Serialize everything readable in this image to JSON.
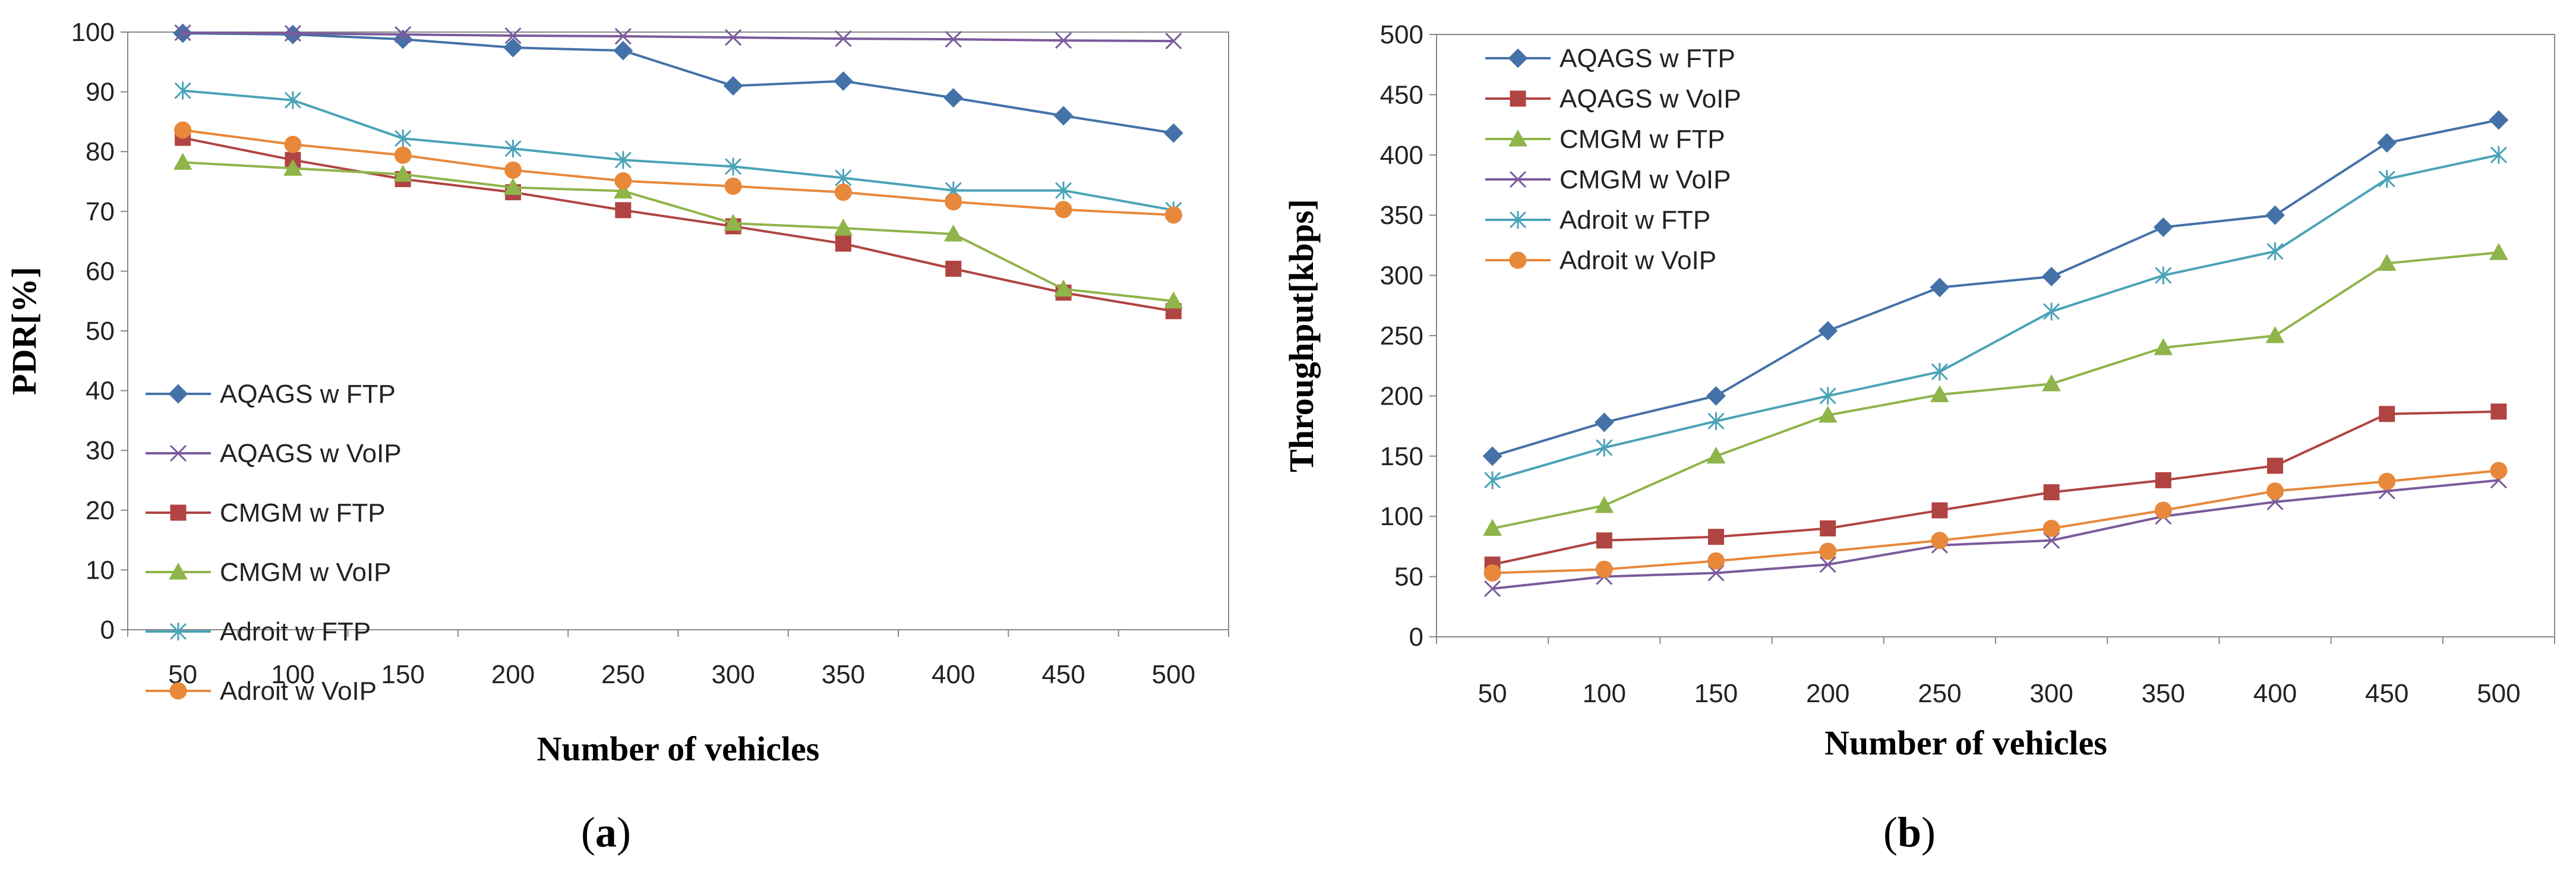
{
  "chart_data": [
    {
      "type": "line",
      "panel_label": "a",
      "title": "",
      "xlabel": "Number of  vehicles",
      "ylabel": "PDR[%]",
      "categories": [
        "50",
        "100",
        "150",
        "200",
        "250",
        "300",
        "350",
        "400",
        "450",
        "500"
      ],
      "ylim": [
        0,
        100
      ],
      "yticks": [
        "0",
        "10",
        "20",
        "30",
        "40",
        "50",
        "60",
        "70",
        "80",
        "90",
        "100"
      ],
      "grid": false,
      "legend_position": "bottom-left",
      "series": [
        {
          "name": "AQAGS w FTP",
          "color": "#4472a8",
          "marker": "diamond",
          "values": [
            99.8,
            99.6,
            98.8,
            97.4,
            96.9,
            91.0,
            91.8,
            89.0,
            86.0,
            83.1
          ]
        },
        {
          "name": "AQAGS w VoIP",
          "color": "#7b5a9c",
          "marker": "x",
          "values": [
            99.9,
            99.8,
            99.6,
            99.4,
            99.3,
            99.1,
            98.9,
            98.8,
            98.6,
            98.5
          ]
        },
        {
          "name": "CMGM w FTP",
          "color": "#b04442",
          "marker": "square",
          "values": [
            82.3,
            78.6,
            75.4,
            73.2,
            70.2,
            67.5,
            64.6,
            60.4,
            56.4,
            53.3
          ]
        },
        {
          "name": "CMGM w VoIP",
          "color": "#8fb44a",
          "marker": "triangle",
          "values": [
            78.2,
            77.2,
            76.2,
            74.0,
            73.4,
            68.0,
            67.2,
            66.2,
            57.0,
            55.0
          ]
        },
        {
          "name": "Adroit w FTP",
          "color": "#4aa3b7",
          "marker": "asterisk",
          "values": [
            90.2,
            88.6,
            82.2,
            80.5,
            78.6,
            77.5,
            75.6,
            73.5,
            73.5,
            70.2
          ]
        },
        {
          "name": "Adroit w VoIP",
          "color": "#e8883a",
          "marker": "circle",
          "values": [
            83.6,
            81.2,
            79.4,
            76.9,
            75.1,
            74.2,
            73.2,
            71.6,
            70.3,
            69.4
          ]
        }
      ]
    },
    {
      "type": "line",
      "panel_label": "b",
      "title": "",
      "xlabel": "Number of vehicles",
      "ylabel": "Throughput[kbps]",
      "categories": [
        "50",
        "100",
        "150",
        "200",
        "250",
        "300",
        "350",
        "400",
        "450",
        "500"
      ],
      "ylim": [
        0,
        500
      ],
      "yticks": [
        "0",
        "50",
        "100",
        "150",
        "200",
        "250",
        "300",
        "350",
        "400",
        "450",
        "500"
      ],
      "grid": false,
      "legend_position": "top-left",
      "series": [
        {
          "name": "AQAGS w FTP",
          "color": "#4472a8",
          "marker": "diamond",
          "values": [
            150,
            178,
            200,
            254,
            290,
            299,
            340,
            350,
            410,
            429
          ]
        },
        {
          "name": "AQAGS w VoIP",
          "color": "#b04442",
          "marker": "square",
          "values": [
            60,
            80,
            83,
            90,
            105,
            120,
            130,
            142,
            185,
            187
          ]
        },
        {
          "name": "CMGM w FTP",
          "color": "#8fb44a",
          "marker": "triangle",
          "values": [
            90,
            109,
            150,
            184,
            201,
            210,
            240,
            250,
            310,
            319
          ]
        },
        {
          "name": "CMGM w VoIP",
          "color": "#7b5a9c",
          "marker": "x",
          "values": [
            40,
            50,
            53,
            60,
            76,
            80,
            100,
            112,
            121,
            130
          ]
        },
        {
          "name": "Adroit w FTP",
          "color": "#4aa3b7",
          "marker": "asterisk",
          "values": [
            130,
            157,
            179,
            200,
            220,
            270,
            300,
            320,
            380,
            400
          ]
        },
        {
          "name": "Adroit w VoIP",
          "color": "#e8883a",
          "marker": "circle",
          "values": [
            53,
            56,
            63,
            71,
            80,
            90,
            105,
            121,
            129,
            138
          ]
        }
      ]
    }
  ],
  "captions": {
    "a": "a",
    "b": "b"
  }
}
